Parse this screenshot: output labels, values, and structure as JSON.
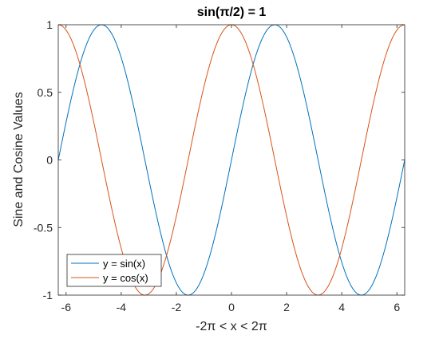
{
  "chart_data": {
    "type": "line",
    "title": "sin(π/2)  =  1",
    "xlabel": "-2π  <  x  <  2π",
    "ylabel": "Sine and Cosine Values",
    "xlim": [
      -6.2832,
      6.2832
    ],
    "ylim": [
      -1,
      1
    ],
    "xticks": [
      -6,
      -4,
      -2,
      0,
      2,
      4,
      6
    ],
    "xtick_labels": [
      "-6",
      "-4",
      "-2",
      "0",
      "2",
      "4",
      "6"
    ],
    "yticks": [
      -1,
      -0.5,
      0,
      0.5,
      1
    ],
    "ytick_labels": [
      "-1",
      "-0.5",
      "0",
      "0.5",
      "1"
    ],
    "grid": false,
    "legend_position": "bottom-left",
    "series": [
      {
        "name": "y = sin(x)",
        "function": "sin",
        "color": "#0072BD"
      },
      {
        "name": "y = cos(x)",
        "function": "cos",
        "color": "#D95319"
      }
    ]
  }
}
